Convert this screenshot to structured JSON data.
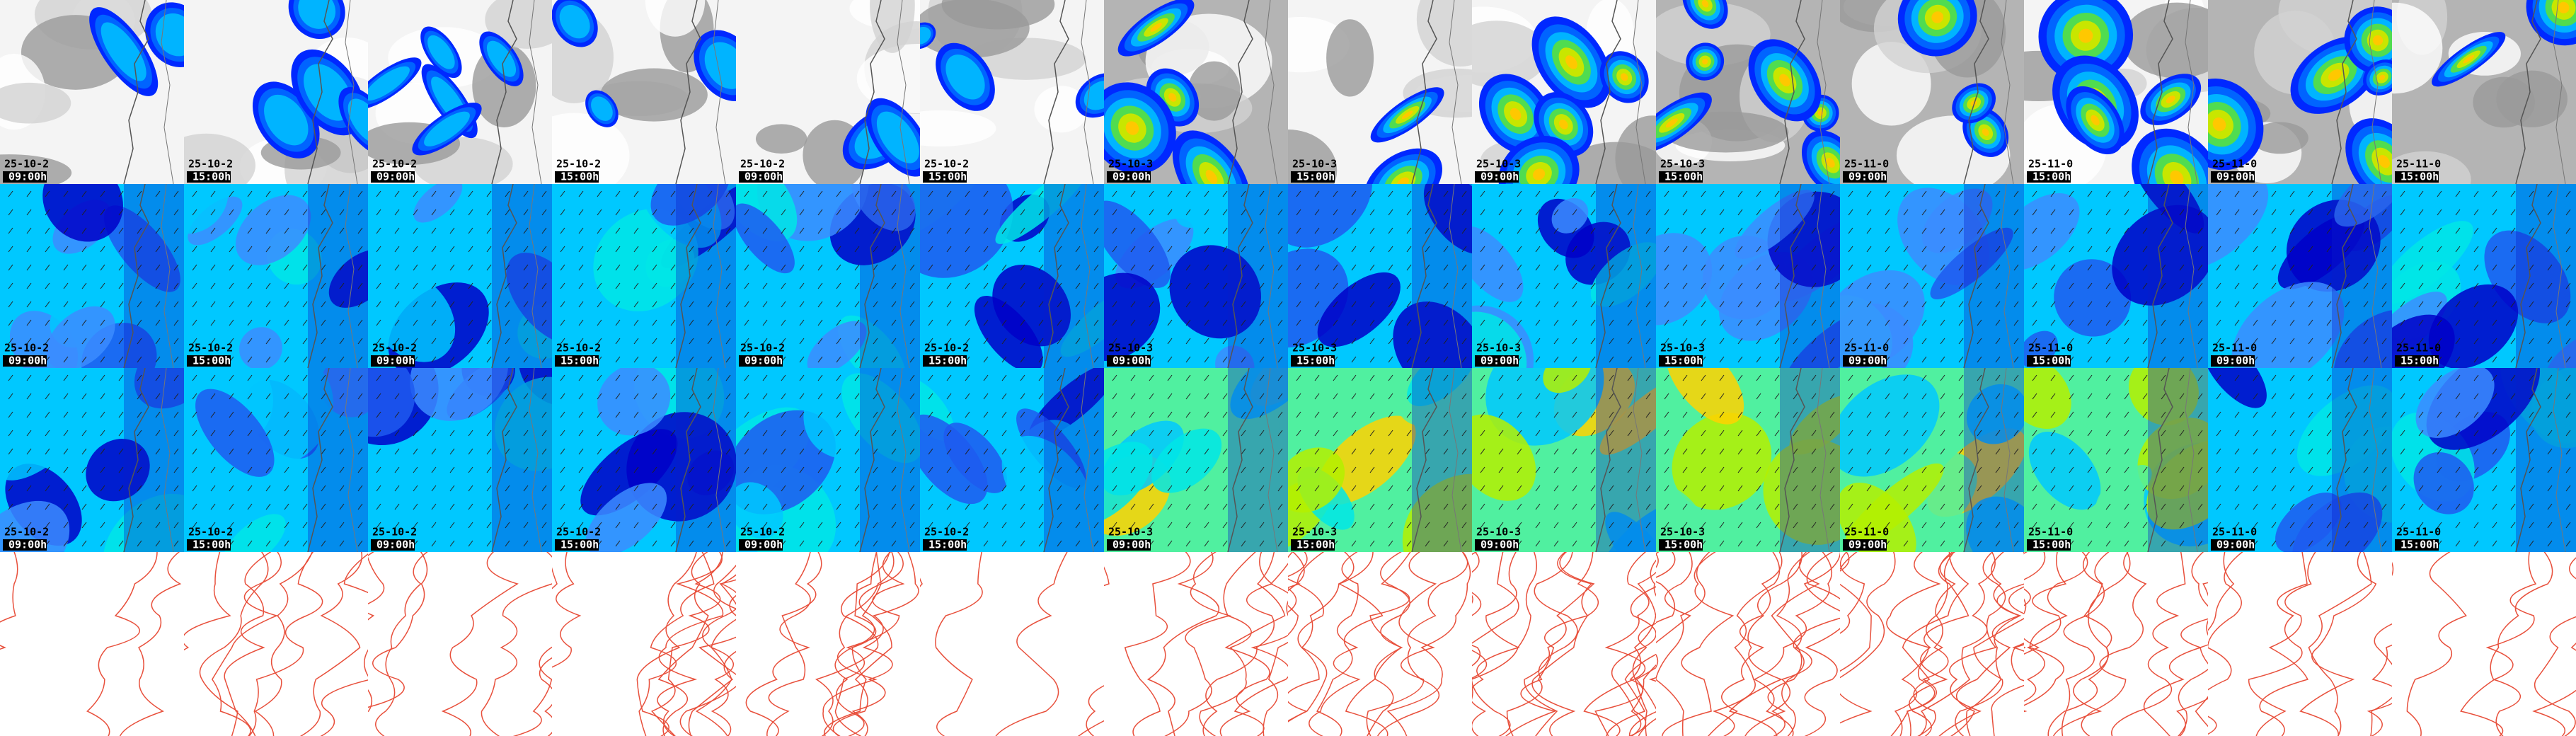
{
  "columns": [
    {
      "date": "25-10-2",
      "time": "09:00h"
    },
    {
      "date": "25-10-2",
      "time": "15:00h"
    },
    {
      "date": "25-10-2",
      "time": "09:00h"
    },
    {
      "date": "25-10-2",
      "time": "15:00h"
    },
    {
      "date": "25-10-2",
      "time": "09:00h"
    },
    {
      "date": "25-10-2",
      "time": "15:00h"
    },
    {
      "date": "25-10-3",
      "time": "09:00h"
    },
    {
      "date": "25-10-3",
      "time": "15:00h"
    },
    {
      "date": "25-10-3",
      "time": "09:00h"
    },
    {
      "date": "25-10-3",
      "time": "15:00h"
    },
    {
      "date": "25-11-0",
      "time": "09:00h"
    },
    {
      "date": "25-11-0",
      "time": "15:00h"
    },
    {
      "date": "25-11-0",
      "time": "09:00h"
    },
    {
      "date": "25-11-0",
      "time": "15:00h"
    }
  ]
}
